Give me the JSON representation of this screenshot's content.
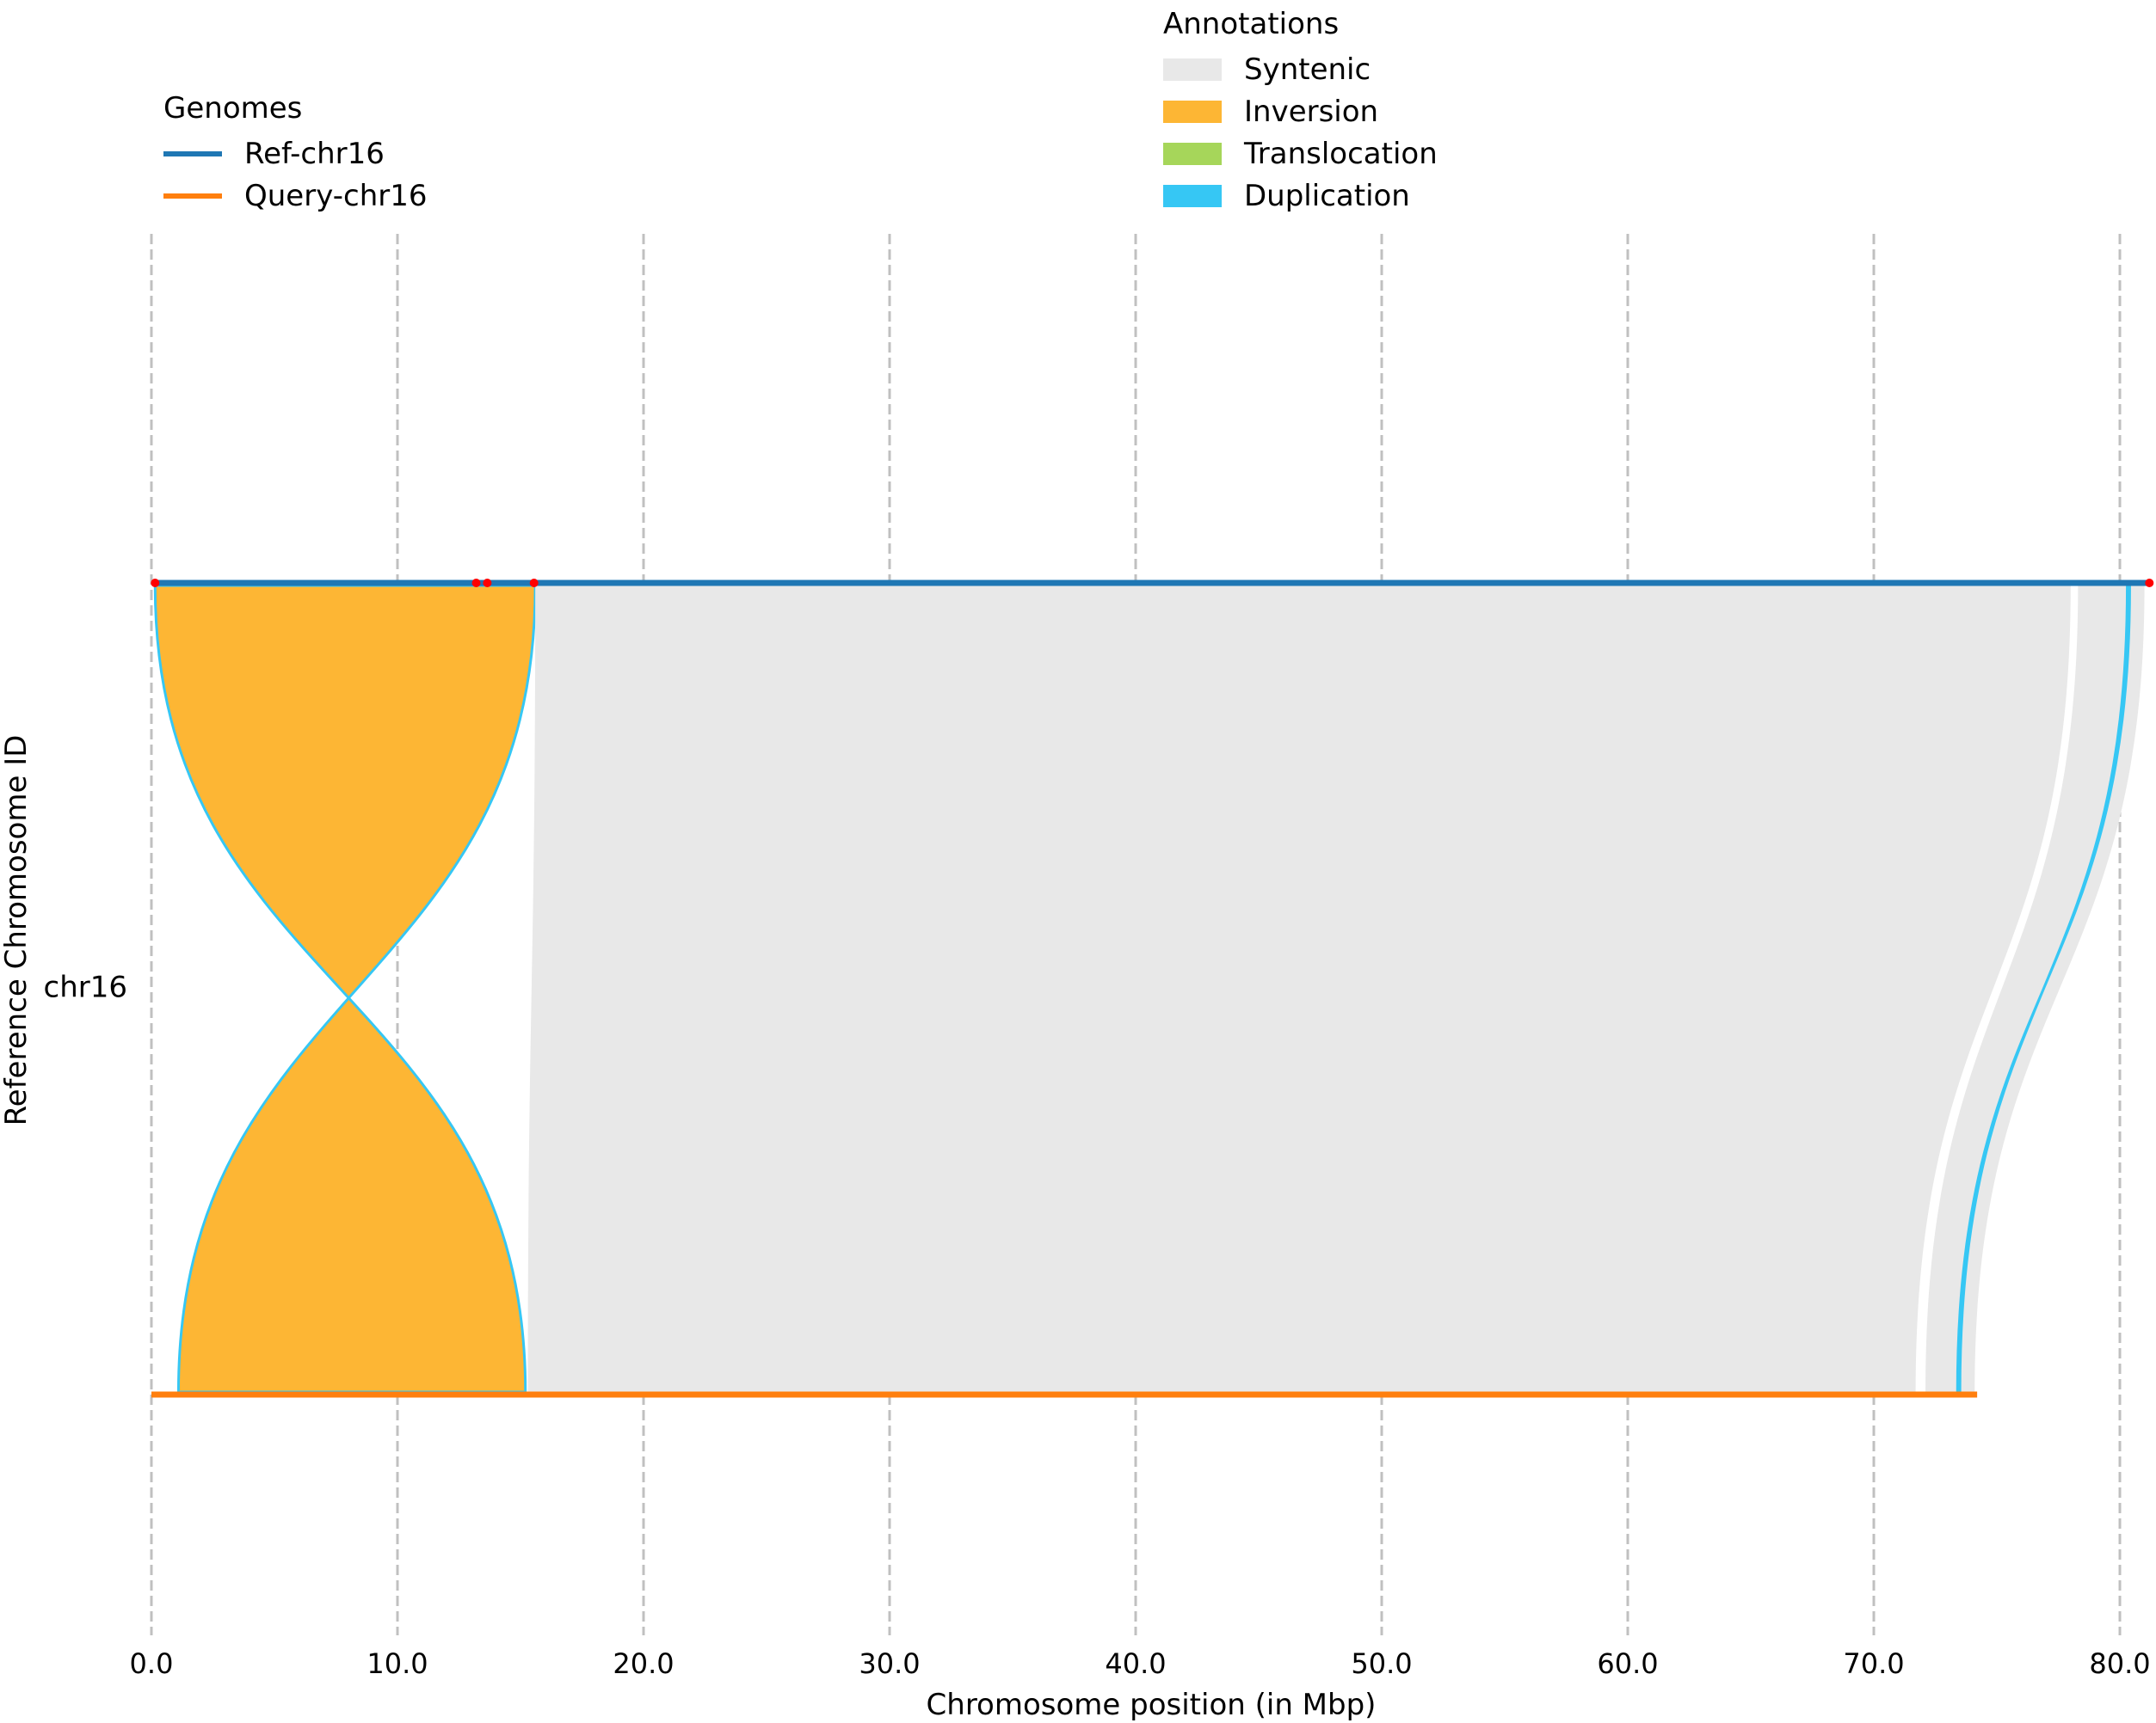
{
  "chart_data": {
    "type": "synteny",
    "xlabel": "Chromosome position (in Mbp)",
    "ylabel": "Reference Chromosome ID",
    "xlim": [
      0,
      81.2
    ],
    "xticks": [
      0,
      10,
      20,
      30,
      40,
      50,
      60,
      70,
      80
    ],
    "xtick_labels": [
      "0.0",
      "10.0",
      "20.0",
      "30.0",
      "40.0",
      "50.0",
      "60.0",
      "70.0",
      "80.0"
    ],
    "grid": "vertical dashed",
    "chromosome_label": "chr16",
    "genomes_legend": {
      "title": "Genomes",
      "placement": "top-left",
      "items": [
        {
          "name": "Ref-chr16",
          "color": "#1f77b4"
        },
        {
          "name": "Query-chr16",
          "color": "#ff7f0e"
        }
      ]
    },
    "annotations_legend": {
      "title": "Annotations",
      "placement": "top-center",
      "items": [
        {
          "name": "Syntenic",
          "color": "#e8e8e8"
        },
        {
          "name": "Inversion",
          "color": "#fdb634"
        },
        {
          "name": "Translocation",
          "color": "#a6d65a"
        },
        {
          "name": "Duplication",
          "color": "#36c7f4"
        }
      ]
    },
    "chromosomes": {
      "reference": {
        "start": 0.1,
        "end": 81.2
      },
      "query": {
        "start": 0.0,
        "end": 74.2
      }
    },
    "blocks": [
      {
        "type": "inversion",
        "ref_start": 0.15,
        "ref_end": 15.6,
        "query_start": 1.1,
        "query_end": 15.2
      },
      {
        "type": "syntenic",
        "ref_start": 15.6,
        "ref_end": 78.0,
        "query_start": 15.3,
        "query_end": 71.7
      },
      {
        "type": "syntenic",
        "ref_start": 78.3,
        "ref_end": 81.0,
        "query_start": 72.1,
        "query_end": 74.1
      },
      {
        "type": "inversion",
        "ref_start": 80.3,
        "ref_end": 80.4,
        "query_start": 73.4,
        "query_end": 73.5
      }
    ],
    "breakpoints": [
      0.15,
      13.2,
      13.65,
      15.55,
      81.2
    ]
  }
}
